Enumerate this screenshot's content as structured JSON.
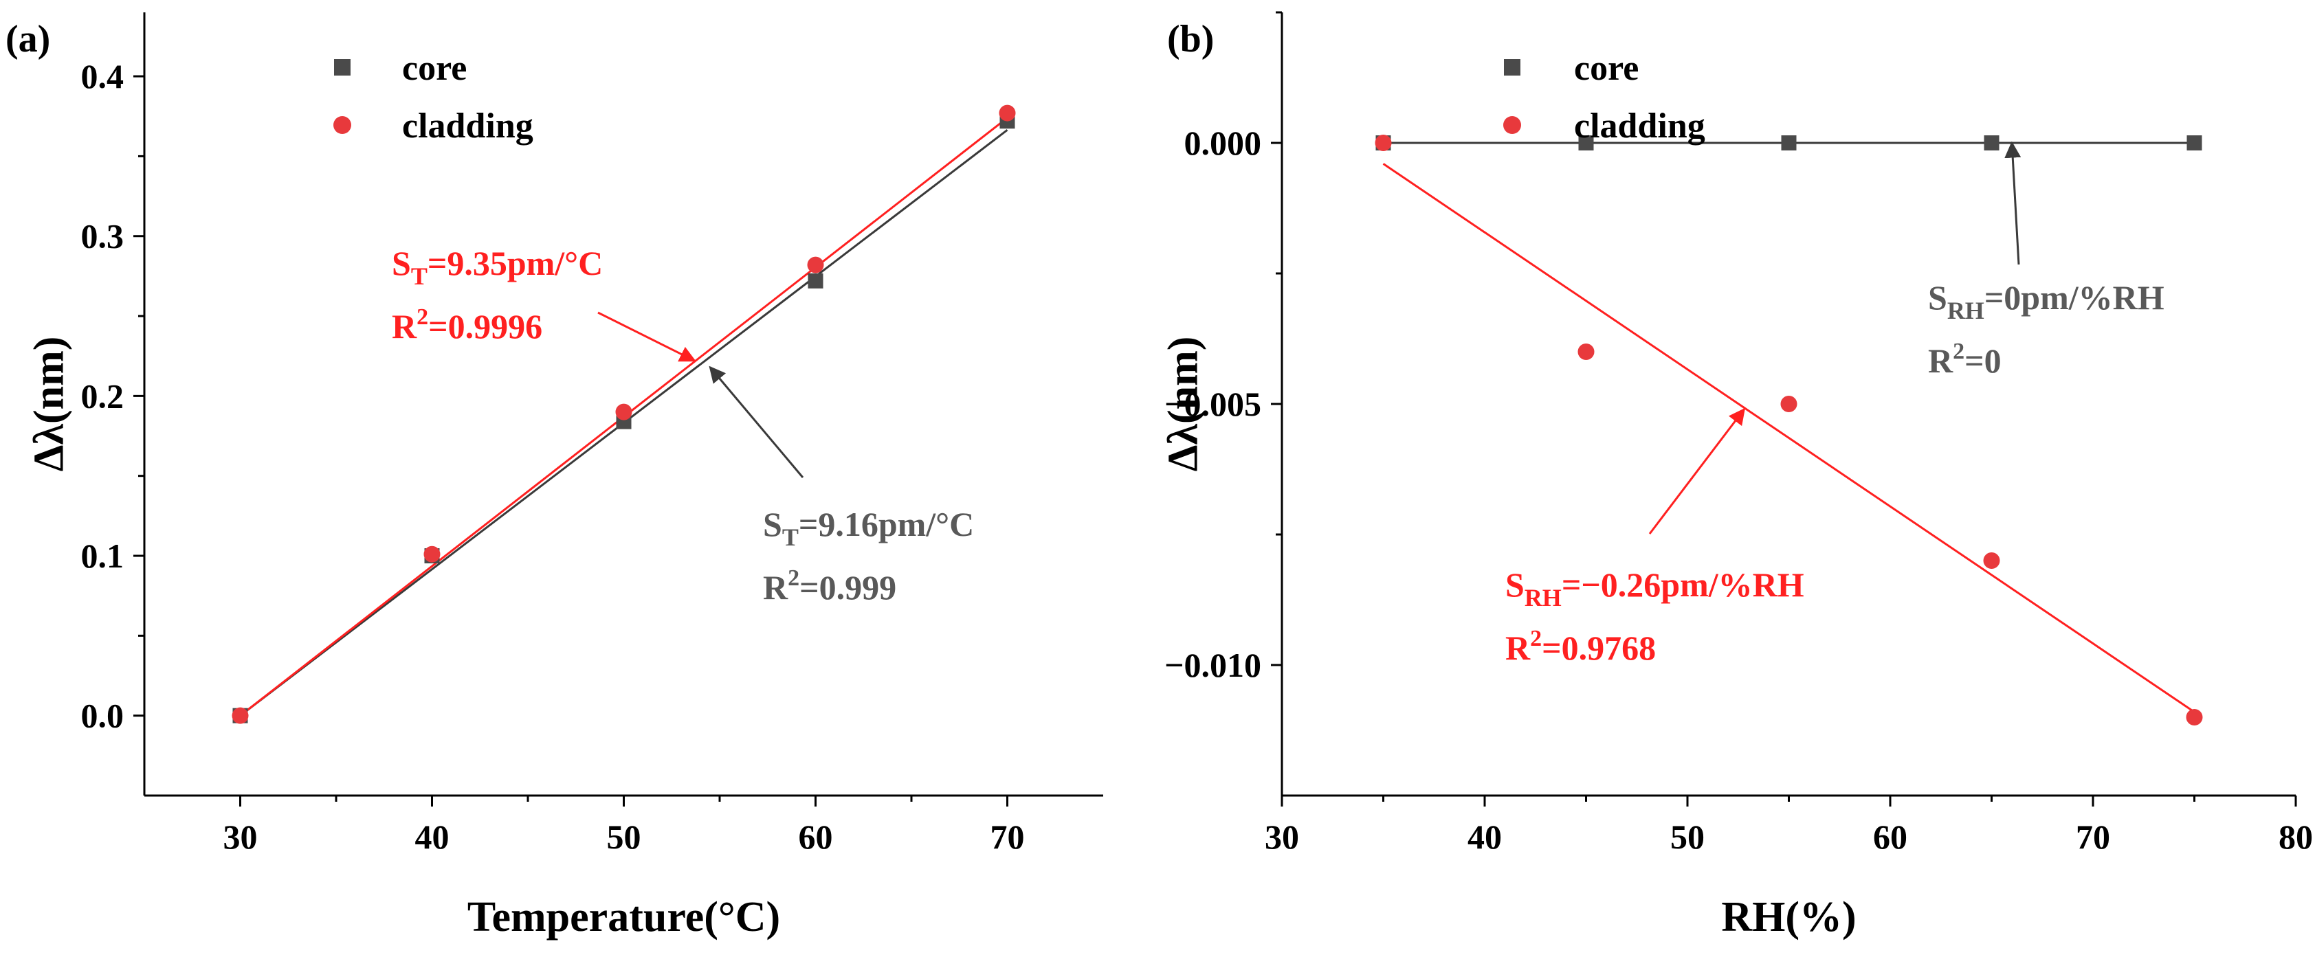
{
  "colors": {
    "core": "#4a4a4a",
    "cladding": "#e8393c",
    "annotation_red": "#ff2020",
    "annotation_gray": "#595959",
    "axis": "#000000"
  },
  "chart_data": [
    {
      "type": "scatter",
      "panel_label": "(a)",
      "xlabel": "Temperature(°C)",
      "ylabel": "Δλ(nm)",
      "xlim": [
        25,
        75
      ],
      "ylim": [
        -0.05,
        0.44
      ],
      "x_ticks": [
        30,
        40,
        50,
        60,
        70
      ],
      "x_tick_labels": [
        "30",
        "40",
        "50",
        "60",
        "70"
      ],
      "y_ticks": [
        0.0,
        0.1,
        0.2,
        0.3,
        0.4
      ],
      "y_tick_labels": [
        "0.0",
        "0.1",
        "0.2",
        "0.3",
        "0.4"
      ],
      "legend": [
        "core",
        "cladding"
      ],
      "legend_position": "top-left",
      "series": [
        {
          "name": "core",
          "marker": "square",
          "x": [
            30,
            40,
            50,
            60,
            70
          ],
          "y": [
            0.0,
            0.1,
            0.184,
            0.272,
            0.372
          ],
          "fit": {
            "x": [
              30,
              70
            ],
            "y": [
              0.0,
              0.3664
            ]
          }
        },
        {
          "name": "cladding",
          "marker": "circle",
          "x": [
            30,
            40,
            50,
            60,
            70
          ],
          "y": [
            0.0,
            0.101,
            0.19,
            0.282,
            0.377
          ],
          "fit": {
            "x": [
              30,
              70
            ],
            "y": [
              0.0,
              0.374
            ]
          }
        }
      ],
      "annotations": [
        {
          "series": "cladding",
          "s_main": "S",
          "s_sub": "T",
          "s_rest": "=9.35pm/°C",
          "r_main": "R",
          "r_sup": "2",
          "r_rest": "=0.9996",
          "arrow_to": [
            53.7,
            0.222
          ]
        },
        {
          "series": "core",
          "s_main": "S",
          "s_sub": "T",
          "s_rest": "=9.16pm/°C",
          "r_main": "R",
          "r_sup": "2",
          "r_rest": "=0.999",
          "arrow_to": [
            54.5,
            0.218
          ]
        }
      ]
    },
    {
      "type": "scatter",
      "panel_label": "(b)",
      "xlabel": "RH(%)",
      "ylabel": "Δλ(nm)",
      "xlim": [
        30,
        80
      ],
      "ylim": [
        -0.0125,
        0.0025
      ],
      "x_ticks": [
        30,
        40,
        50,
        60,
        70,
        80
      ],
      "x_tick_labels": [
        "30",
        "40",
        "50",
        "60",
        "70",
        "80"
      ],
      "y_ticks": [
        0.0,
        -0.005,
        -0.01
      ],
      "y_tick_labels": [
        "0.000",
        "−0.005",
        "−0.010"
      ],
      "legend": [
        "core",
        "cladding"
      ],
      "legend_position": "top-left",
      "series": [
        {
          "name": "core",
          "marker": "square",
          "x": [
            35,
            45,
            55,
            65,
            75
          ],
          "y": [
            0.0,
            0.0,
            0.0,
            0.0,
            0.0
          ],
          "fit": {
            "x": [
              35,
              75
            ],
            "y": [
              0.0,
              0.0
            ]
          }
        },
        {
          "name": "cladding",
          "marker": "circle",
          "x": [
            35,
            45,
            55,
            65,
            75
          ],
          "y": [
            0.0,
            -0.004,
            -0.005,
            -0.008,
            -0.011
          ],
          "fit": {
            "x": [
              35,
              75
            ],
            "y": [
              -0.0004,
              -0.0109
            ]
          }
        }
      ],
      "annotations": [
        {
          "series": "core",
          "s_main": "S",
          "s_sub": "RH",
          "s_rest": "=0pm/%RH",
          "r_main": "R",
          "r_sup": "2",
          "r_rest": "=0",
          "arrow_to": [
            66,
            0.0
          ]
        },
        {
          "series": "cladding",
          "s_main": "S",
          "s_sub": "RH",
          "s_rest": "=−0.26pm/%RH",
          "r_main": "R",
          "r_sup": "2",
          "r_rest": "=0.9768",
          "arrow_to": [
            52.8,
            -0.0051
          ]
        }
      ]
    }
  ]
}
